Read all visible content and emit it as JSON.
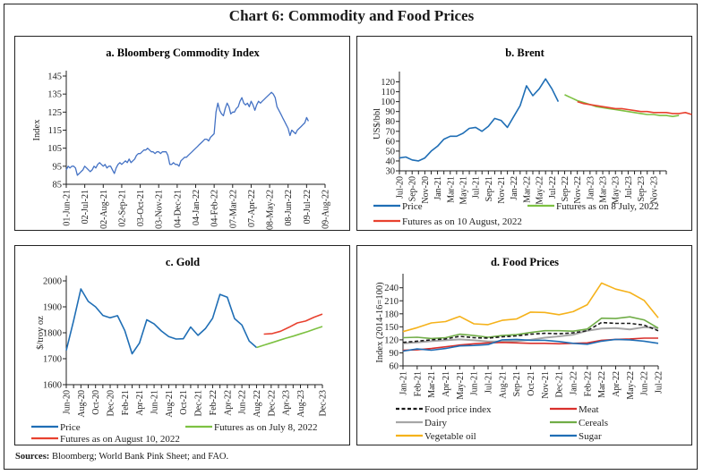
{
  "title": "Chart 6: Commodity and Food Prices",
  "sources_label": "Sources:",
  "sources_text": "Bloomberg; World Bank Pink Sheet; and FAO.",
  "chart_data": [
    {
      "id": "a",
      "type": "line",
      "title": "a. Bloomberg Commodity Index",
      "xlabel": "",
      "ylabel": "Index",
      "ylim": [
        85,
        145
      ],
      "yticks": [
        85,
        95,
        105,
        115,
        125,
        135,
        145
      ],
      "x_tick_labels": [
        "01-Jun-21",
        "02-Jul-21",
        "02-Aug-21",
        "02-Sep-21",
        "03-Oct-21",
        "03-Nov-21",
        "04-Dec-21",
        "04-Jan-22",
        "04-Feb-22",
        "07-Mar-22",
        "07-Apr-22",
        "08-May-22",
        "08-Jun-22",
        "09-Jul-22",
        "09-Aug-22"
      ],
      "series": [
        {
          "name": "Bloomberg Commodity Index",
          "color": "#4472c4",
          "x_index": [
            0,
            0.1,
            0.2,
            0.3,
            0.4,
            0.5,
            0.6,
            0.7,
            0.8,
            0.9,
            1.0,
            1.1,
            1.2,
            1.3,
            1.4,
            1.5,
            1.6,
            1.7,
            1.8,
            1.9,
            2.0,
            2.1,
            2.2,
            2.3,
            2.4,
            2.5,
            2.6,
            2.7,
            2.8,
            2.9,
            3.0,
            3.1,
            3.2,
            3.3,
            3.4,
            3.5,
            3.6,
            3.7,
            3.8,
            3.9,
            4.0,
            4.1,
            4.2,
            4.3,
            4.4,
            4.5,
            4.6,
            4.7,
            4.8,
            4.9,
            5.0,
            5.1,
            5.2,
            5.3,
            5.4,
            5.5,
            5.6,
            5.7,
            5.8,
            5.9,
            6.0,
            6.1,
            6.2,
            6.3,
            6.4,
            6.5,
            6.6,
            6.7,
            6.8,
            6.9,
            7.0,
            7.1,
            7.2,
            7.3,
            7.4,
            7.5,
            7.6,
            7.7,
            7.8,
            7.9,
            8.0,
            8.1,
            8.2,
            8.3,
            8.4,
            8.5,
            8.6,
            8.7,
            8.8,
            8.9,
            9.0,
            9.1,
            9.2,
            9.3,
            9.4,
            9.5,
            9.6,
            9.7,
            9.8,
            9.9,
            10.0,
            10.1,
            10.2,
            10.3,
            10.4,
            10.5,
            10.6,
            10.7,
            10.8,
            10.9,
            11.0,
            11.1,
            11.2,
            11.3,
            11.4,
            11.5,
            11.6,
            11.7,
            11.8,
            11.9,
            12.0,
            12.1,
            12.2,
            12.3,
            12.4,
            12.5,
            12.6,
            12.7,
            12.8,
            12.9,
            13.0,
            13.1,
            13.2,
            13.3,
            13.4,
            13.5,
            13.6,
            13.7,
            13.8
          ],
          "values": [
            93,
            95,
            94,
            95,
            95,
            94,
            90,
            91,
            92,
            93,
            95,
            94,
            93,
            92,
            93,
            95,
            94,
            96,
            97,
            96,
            95,
            96,
            94,
            95,
            95,
            93,
            91,
            94,
            96,
            97,
            96,
            97,
            98,
            97,
            99,
            97,
            98,
            99,
            101,
            102,
            102,
            103,
            104,
            104,
            105,
            104,
            103,
            103,
            102,
            103,
            103,
            102,
            103,
            103,
            103,
            101,
            96,
            96,
            97,
            96,
            96,
            95,
            98,
            99,
            100,
            100,
            101,
            102,
            103,
            104,
            105,
            106,
            107,
            108,
            109,
            110,
            110,
            109,
            111,
            112,
            113,
            125,
            130,
            126,
            124,
            123,
            127,
            130,
            128,
            124,
            125,
            125,
            127,
            128,
            131,
            133,
            130,
            129,
            130,
            128,
            131,
            129,
            126,
            129,
            131,
            130,
            131,
            132,
            133,
            134,
            135,
            136,
            135,
            133,
            128,
            126,
            124,
            122,
            120,
            118,
            116,
            112,
            115,
            114,
            113,
            115,
            116,
            117,
            118,
            119,
            122,
            120
          ],
          "note": "approximate daily index levels read from the plotted line"
        }
      ]
    },
    {
      "id": "b",
      "type": "line",
      "title": "b. Brent",
      "ylabel": "US$/bbl",
      "ylim": [
        30,
        125
      ],
      "yticks": [
        30,
        40,
        50,
        60,
        70,
        80,
        90,
        100,
        110,
        120
      ],
      "x_tick_labels": [
        "Jul-20",
        "Sep-20",
        "Nov-20",
        "Jan-21",
        "Mar-21",
        "May-21",
        "Jul-21",
        "Sep-21",
        "Nov-21",
        "Jan-22",
        "Mar-22",
        "May-22",
        "Jul-22",
        "Sep-22",
        "Nov-22",
        "Jan-23",
        "Mar-23",
        "May-23",
        "Jul-23",
        "Sep-23",
        "Nov-23"
      ],
      "x_month_count": 43,
      "series": [
        {
          "name": "Price",
          "color": "#1f6eb5",
          "start_month": 0,
          "values": [
            43,
            44,
            41,
            40,
            43,
            50,
            55,
            62,
            65,
            65,
            68,
            73,
            74,
            70,
            75,
            83,
            81,
            74,
            85,
            96,
            116,
            106,
            113,
            123,
            113,
            100
          ]
        },
        {
          "name": "Futures as on 8 July, 2022",
          "color": "#7dc142",
          "start_month": 26,
          "values": [
            107,
            104,
            101,
            99,
            97,
            95,
            94,
            93,
            92,
            91,
            90,
            89,
            88,
            87,
            87,
            86,
            86,
            85,
            86
          ]
        },
        {
          "name": "Futures as on 10 August, 2022",
          "color": "#e8412f",
          "start_month": 28,
          "values": [
            100,
            98,
            97,
            96,
            95,
            94,
            93,
            93,
            92,
            91,
            90,
            90,
            89,
            89,
            89,
            88,
            88,
            89,
            87
          ]
        }
      ],
      "legend": [
        "Price",
        "Futures as on 8 July, 2022",
        "Futures as on 10 August, 2022"
      ]
    },
    {
      "id": "c",
      "type": "line",
      "title": "c. Gold",
      "ylabel": "$/troy oz",
      "ylim": [
        1600,
        2000
      ],
      "yticks": [
        1600,
        1700,
        1800,
        1900,
        2000
      ],
      "x_tick_labels": [
        "Jun-20",
        "Aug-20",
        "Oct-20",
        "Dec-20",
        "Feb-21",
        "Apr-21",
        "Jun-21",
        "Aug-21",
        "Oct-21",
        "Dec-21",
        "Feb-22",
        "Apr-22",
        "Jun-22",
        "Aug-22",
        "Dec-22",
        "Apr-23",
        "Aug-23",
        "Dec-23"
      ],
      "x_point_count": 36,
      "series": [
        {
          "name": "Price",
          "color": "#1f6eb5",
          "start_index": 0,
          "values": [
            1732,
            1847,
            1969,
            1921,
            1900,
            1867,
            1858,
            1866,
            1808,
            1719,
            1760,
            1850,
            1834,
            1807,
            1785,
            1776,
            1777,
            1822,
            1790,
            1816,
            1856,
            1948,
            1937,
            1855,
            1830,
            1768,
            1743
          ]
        },
        {
          "name": "Futures as on July 8, 2022",
          "color": "#7dc142",
          "start_index": 26,
          "values": [
            1743,
            1752,
            1761,
            1770,
            1779,
            1787,
            1796,
            1805,
            1815,
            1824
          ]
        },
        {
          "name": "Futures as on August 10, 2022",
          "color": "#e8412f",
          "start_index": 27,
          "values": [
            1795,
            1797,
            1806,
            1821,
            1838,
            1845,
            1860,
            1872
          ]
        }
      ],
      "legend": [
        "Price",
        "Futures as on July 8, 2022",
        "Futures as on August 10, 2022"
      ]
    },
    {
      "id": "d",
      "type": "line",
      "title": "d. Food Prices",
      "ylabel": "Index (2014-16=100)",
      "ylim": [
        60,
        260
      ],
      "yticks": [
        60,
        90,
        120,
        150,
        180,
        210,
        240
      ],
      "categories": [
        "Jan-21",
        "Feb-21",
        "Mar-21",
        "Apr-21",
        "May-21",
        "Jun-21",
        "Jul-21",
        "Aug-21",
        "Sep-21",
        "Oct-21",
        "Nov-21",
        "Dec-21",
        "Jan-22",
        "Feb-22",
        "Mar-22",
        "Apr-22",
        "May-22",
        "Jun-22",
        "Jul-22"
      ],
      "series": [
        {
          "name": "Food price index",
          "color": "#1a1a1a",
          "dash": true,
          "values": [
            114,
            117,
            120,
            122,
            128,
            125,
            124,
            127,
            129,
            133,
            135,
            134,
            136,
            141,
            160,
            158,
            158,
            154,
            141
          ]
        },
        {
          "name": "Meat",
          "color": "#d9302c",
          "values": [
            96,
            97,
            100,
            104,
            108,
            111,
            113,
            114,
            113,
            112,
            112,
            111,
            112,
            113,
            119,
            121,
            122,
            124,
            124
          ]
        },
        {
          "name": "Dairy",
          "color": "#a6a6a6",
          "values": [
            112,
            114,
            117,
            119,
            121,
            119,
            116,
            116,
            117,
            120,
            125,
            128,
            132,
            141,
            146,
            147,
            144,
            149,
            147
          ]
        },
        {
          "name": "Cereals",
          "color": "#70ad47",
          "values": [
            125,
            126,
            123,
            125,
            133,
            130,
            126,
            130,
            132,
            137,
            141,
            141,
            140,
            145,
            170,
            169,
            173,
            166,
            147
          ]
        },
        {
          "name": "Vegetable oil",
          "color": "#f5b21b",
          "values": [
            139,
            148,
            159,
            162,
            174,
            157,
            155,
            165,
            168,
            184,
            183,
            178,
            185,
            201,
            251,
            237,
            229,
            211,
            171
          ]
        },
        {
          "name": "Sugar",
          "color": "#1f6eb5",
          "values": [
            94,
            99,
            96,
            100,
            106,
            107,
            109,
            120,
            121,
            119,
            119,
            116,
            112,
            110,
            117,
            121,
            120,
            117,
            112
          ]
        }
      ],
      "legend": [
        "Food price index",
        "Meat",
        "Dairy",
        "Cereals",
        "Vegetable oil",
        "Sugar"
      ]
    }
  ]
}
